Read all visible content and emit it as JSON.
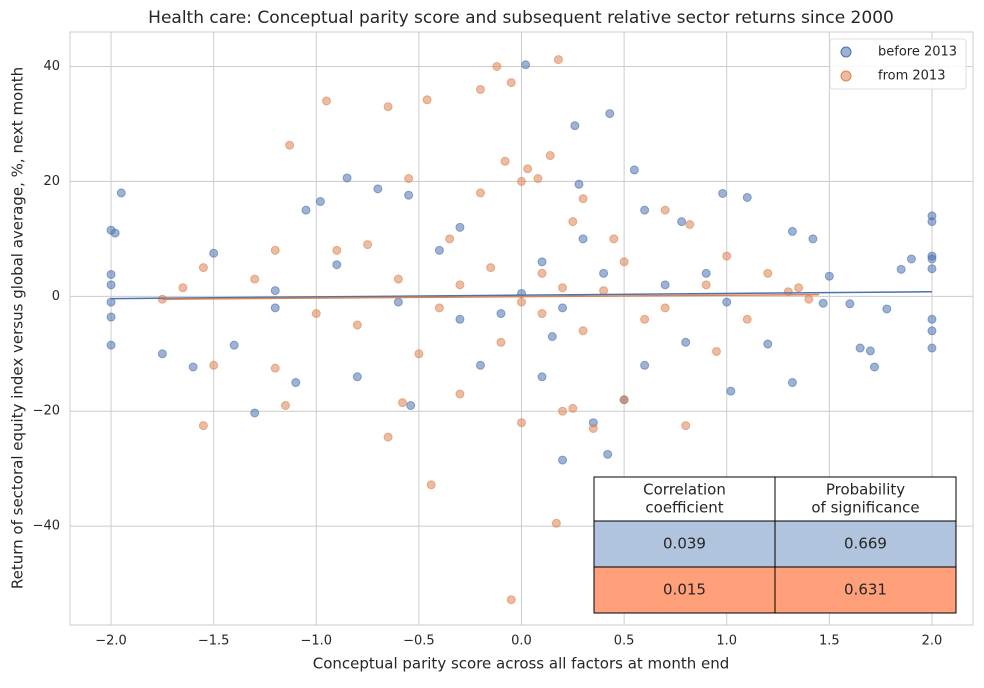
{
  "chart_data": {
    "type": "scatter",
    "title": "Health care: Conceptual parity score and subsequent relative sector returns since 2000",
    "x_label": "Conceptual parity score across all factors at month end",
    "y_label": "Return of sectoral equity index versus global average, %, next month",
    "xlim": [
      -2.2,
      2.2
    ],
    "ylim": [
      -57.2,
      46
    ],
    "xticks": [
      {
        "value": -2,
        "label": "−2.0"
      },
      {
        "value": -1.5,
        "label": "−1.5"
      },
      {
        "value": -1,
        "label": "−1.0"
      },
      {
        "value": -0.5,
        "label": "−0.5"
      },
      {
        "value": 0,
        "label": "0.0"
      },
      0.5,
      {
        "value": 1,
        "label": "1.0"
      },
      1.5,
      {
        "value": 2,
        "label": "2.0"
      }
    ],
    "yticks": [
      {
        "value": -40,
        "label": "−40"
      },
      {
        "value": -20,
        "label": "−20"
      },
      0,
      20,
      40
    ],
    "grid": true,
    "legend": "upper right",
    "series": [
      {
        "name": "before 2013",
        "color": "#4c72b0",
        "x": [
          0.02,
          0.43,
          0.26,
          0.55,
          0.28,
          0.98,
          1.1,
          -0.85,
          -1.05,
          -0.98,
          -1.95,
          -2,
          -1.98,
          -2,
          -2,
          -2,
          -2,
          -2,
          2,
          2,
          2,
          2,
          2,
          2,
          2,
          2,
          1.9,
          1.85,
          1.78,
          1.7,
          1.72,
          1.65,
          1.32,
          1.32,
          1.42,
          1.02,
          0.2,
          0.42,
          -1.3,
          -0.54,
          -1.75,
          -1.6,
          -1.4,
          -1.5,
          -0.7,
          -0.55,
          0.6,
          0.78,
          0.3,
          -0.3,
          -0.2,
          0.1,
          0.6,
          0.8,
          -0.8,
          -1.1,
          1.2,
          0.5,
          0.35,
          -0.4,
          0.1,
          0.4,
          -0.1,
          0.2,
          -0.6,
          0.7,
          1.0,
          -1.2,
          1.5,
          1.6,
          1.47,
          -1.2,
          0.9,
          0.0,
          -0.3,
          0.15,
          -0.9
        ],
        "values": [
          40.3,
          31.8,
          29.7,
          22,
          19.5,
          17.9,
          17.2,
          20.6,
          15,
          16.5,
          18,
          11.5,
          11,
          3.8,
          2,
          -1,
          -3.6,
          -8.5,
          14,
          13,
          7,
          6.5,
          4.8,
          -4,
          -6,
          -9,
          6.5,
          4.7,
          -2.2,
          -9.5,
          -12.3,
          -9,
          -15,
          11.3,
          10,
          -16.5,
          -28.5,
          -27.5,
          -20.3,
          -19,
          -10,
          -12.3,
          -8.5,
          7.5,
          18.7,
          17.6,
          15,
          13,
          10,
          12,
          -12,
          -14,
          -12,
          -8,
          -14,
          -15,
          -8.3,
          -18,
          -22,
          8,
          6,
          4,
          -3,
          -2,
          -1,
          2,
          -1,
          1,
          3.5,
          -1.3,
          -1.2,
          -2,
          4,
          0.5,
          -4,
          -7,
          5.5
        ],
        "fit": {
          "x": [
            -2,
            2
          ],
          "values": [
            -0.4,
            0.8
          ]
        }
      },
      {
        "name": "from 2013",
        "color": "#dd8452",
        "x": [
          0.18,
          -0.12,
          -0.05,
          -0.2,
          -0.95,
          -0.65,
          -0.46,
          -1.13,
          0.14,
          -0.08,
          0.03,
          0.08,
          -0.55,
          0.0,
          0.3,
          0.7,
          0.82,
          1.0,
          1.2,
          1.3,
          1.35,
          1.4,
          0.95,
          0.8,
          0.35,
          0.17,
          -0.05,
          -0.44,
          -0.65,
          -1.15,
          -1.55,
          -0.58,
          -0.3,
          0.0,
          0.2,
          0.25,
          0.5,
          -1.5,
          -1.2,
          -1.65,
          -1.75,
          -1.55,
          -1.2,
          -0.9,
          -0.75,
          -0.35,
          -0.2,
          0.25,
          0.45,
          -0.5,
          -0.1,
          0.3,
          0.6,
          -0.8,
          0.1,
          -0.3,
          0.4,
          0.0,
          -0.6,
          0.7,
          0.5,
          -1.0,
          0.9,
          -0.4,
          0.2,
          -0.15,
          0.1,
          1.1,
          -1.3
        ],
        "values": [
          41.2,
          40,
          37.2,
          36,
          34,
          33,
          34.2,
          26.3,
          24.5,
          23.5,
          22.2,
          20.5,
          20.5,
          20,
          17,
          15,
          12.5,
          7,
          4,
          0.8,
          1.5,
          -0.5,
          -9.6,
          -22.5,
          -23,
          -39.5,
          -52.8,
          -32.8,
          -24.5,
          -19,
          -22.5,
          -18.5,
          -17,
          -22,
          -20,
          -19.5,
          -18,
          -12,
          -12.5,
          1.5,
          -0.5,
          5,
          8,
          8,
          9,
          10,
          18,
          13,
          10,
          -10,
          -8,
          -6,
          -4,
          -5,
          4,
          2,
          1,
          -1,
          3,
          -2,
          6,
          -3,
          2,
          -2,
          1.5,
          5,
          -3,
          -4,
          3
        ],
        "fit": {
          "x": [
            -1.75,
            1.45
          ],
          "values": [
            -0.5,
            0.3
          ]
        }
      }
    ],
    "table": {
      "columns": [
        [
          "Correlation",
          "coefficient"
        ],
        [
          "Probability",
          "of significance"
        ]
      ],
      "rows": [
        {
          "color": "#b0c4de",
          "values": [
            0.039,
            0.669
          ]
        },
        {
          "color": "#ffa07a",
          "values": [
            0.015,
            0.631
          ]
        }
      ]
    }
  }
}
